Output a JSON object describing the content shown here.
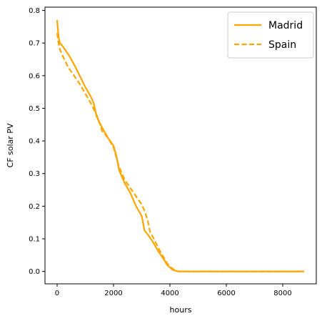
{
  "chart_data": {
    "type": "line",
    "xlabel": "hours",
    "ylabel": "CF solar PV",
    "xlim": [
      -430,
      9190
    ],
    "ylim": [
      -0.038,
      0.81
    ],
    "xticks": [
      0,
      2000,
      4000,
      6000,
      8000
    ],
    "yticks": [
      0.0,
      0.1,
      0.2,
      0.3,
      0.4,
      0.5,
      0.6,
      0.7,
      0.8
    ],
    "xtick_labels": [
      "0",
      "2000",
      "4000",
      "6000",
      "8000"
    ],
    "ytick_labels": [
      "0.0",
      "0.1",
      "0.2",
      "0.3",
      "0.4",
      "0.5",
      "0.6",
      "0.7",
      "0.8"
    ],
    "grid": false,
    "legend": "top-right",
    "color": "#ffa500",
    "series": [
      {
        "name": "Madrid",
        "style": "solid",
        "x": [
          0,
          50,
          100,
          200,
          400,
          600,
          800,
          1000,
          1200,
          1300,
          1400,
          1600,
          1800,
          2000,
          2100,
          2200,
          2300,
          2400,
          2600,
          2800,
          3000,
          3100,
          3200,
          3400,
          3600,
          3800,
          3900,
          4000,
          4100,
          4200,
          4300,
          5000,
          6000,
          7000,
          8000,
          8760
        ],
        "y": [
          0.77,
          0.72,
          0.7,
          0.69,
          0.665,
          0.635,
          0.6,
          0.565,
          0.535,
          0.515,
          0.475,
          0.44,
          0.41,
          0.385,
          0.355,
          0.31,
          0.29,
          0.27,
          0.24,
          0.2,
          0.17,
          0.125,
          0.115,
          0.09,
          0.06,
          0.035,
          0.02,
          0.012,
          0.005,
          0.002,
          0.0,
          0.0,
          0.0,
          0.0,
          0.0,
          0.0
        ]
      },
      {
        "name": "Spain",
        "style": "dashed",
        "x": [
          0,
          50,
          100,
          200,
          400,
          600,
          800,
          1000,
          1200,
          1400,
          1600,
          1800,
          2000,
          2100,
          2200,
          2300,
          2400,
          2600,
          2800,
          3000,
          3100,
          3200,
          3300,
          3400,
          3600,
          3800,
          3900,
          4000,
          4100,
          4200,
          4300,
          5000,
          6000,
          7000,
          8000,
          8760
        ],
        "y": [
          0.73,
          0.7,
          0.68,
          0.66,
          0.625,
          0.6,
          0.575,
          0.545,
          0.515,
          0.48,
          0.43,
          0.41,
          0.38,
          0.35,
          0.32,
          0.3,
          0.28,
          0.255,
          0.23,
          0.205,
          0.185,
          0.16,
          0.12,
          0.105,
          0.07,
          0.04,
          0.025,
          0.015,
          0.008,
          0.003,
          0.0,
          0.0,
          0.0,
          0.0,
          0.0,
          0.0
        ]
      }
    ]
  }
}
